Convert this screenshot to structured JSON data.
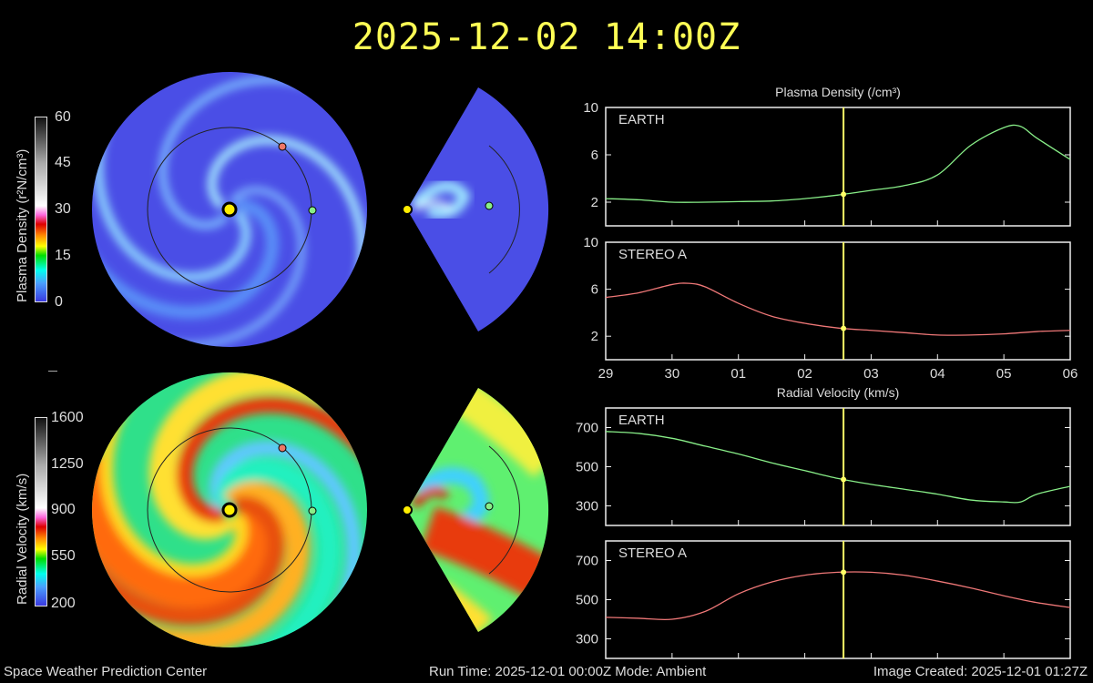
{
  "title": "2025-12-02 14:00Z",
  "footer": {
    "org": "Space Weather Prediction Center",
    "run_time": "Run Time: 2025-12-01 00:00Z  Mode: Ambient",
    "image_created": "Image Created: 2025-12-01 01:27Z"
  },
  "colorbars": {
    "density": {
      "title": "Plasma Density (r²N/cm³)",
      "ticks": [
        "60",
        "45",
        "30",
        "15",
        "0"
      ]
    },
    "velocity": {
      "title": "Radial Velocity (km/s)",
      "ticks": [
        "1600",
        "1250",
        "900",
        "550",
        "200"
      ]
    }
  },
  "colors": {
    "earth": "#88ee88",
    "stereo_a": "#ee7777",
    "current_time": "#ffff66",
    "sun": "#ffee00"
  },
  "chart_data": [
    {
      "type": "line",
      "title": "Plasma Density (/cm³)",
      "panel": "EARTH",
      "x_ticks": [
        "29",
        "30",
        "01",
        "02",
        "03",
        "04",
        "05",
        "06"
      ],
      "y_ticks": [
        "10",
        "6",
        "2"
      ],
      "ylim": [
        0,
        10
      ],
      "xlim": [
        "2025-11-29 00:00",
        "2025-12-06 00:00"
      ],
      "current_time": "2025-12-02 14:00",
      "series": [
        {
          "color": "#88ee88",
          "x": [
            "2025-11-29 00:00",
            "2025-11-29 12:00",
            "2025-11-30 00:00",
            "2025-11-30 12:00",
            "2025-12-01 00:00",
            "2025-12-01 12:00",
            "2025-12-02 00:00",
            "2025-12-02 12:00",
            "2025-12-03 00:00",
            "2025-12-03 12:00",
            "2025-12-04 00:00",
            "2025-12-04 12:00",
            "2025-12-05 00:00",
            "2025-12-05 06:00",
            "2025-12-05 12:00",
            "2025-12-06 00:00"
          ],
          "y": [
            2.3,
            2.2,
            2.0,
            2.0,
            2.05,
            2.1,
            2.3,
            2.6,
            3.0,
            3.4,
            4.3,
            6.8,
            8.3,
            8.4,
            7.4,
            5.6
          ]
        }
      ]
    },
    {
      "type": "line",
      "panel": "STEREO A",
      "x_ticks": [
        "29",
        "30",
        "01",
        "02",
        "03",
        "04",
        "05",
        "06"
      ],
      "y_ticks": [
        "10",
        "6",
        "2"
      ],
      "ylim": [
        0,
        10
      ],
      "xlim": [
        "2025-11-29 00:00",
        "2025-12-06 00:00"
      ],
      "current_time": "2025-12-02 14:00",
      "series": [
        {
          "color": "#ee7777",
          "x": [
            "2025-11-29 00:00",
            "2025-11-29 12:00",
            "2025-11-30 00:00",
            "2025-11-30 06:00",
            "2025-11-30 12:00",
            "2025-12-01 00:00",
            "2025-12-01 12:00",
            "2025-12-02 00:00",
            "2025-12-02 12:00",
            "2025-12-03 00:00",
            "2025-12-03 12:00",
            "2025-12-04 00:00",
            "2025-12-04 12:00",
            "2025-12-05 00:00",
            "2025-12-05 12:00",
            "2025-12-06 00:00"
          ],
          "y": [
            5.3,
            5.7,
            6.4,
            6.5,
            6.2,
            4.8,
            3.7,
            3.1,
            2.7,
            2.5,
            2.3,
            2.1,
            2.1,
            2.2,
            2.4,
            2.5
          ]
        }
      ]
    },
    {
      "type": "line",
      "title": "Radial Velocity (km/s)",
      "panel": "EARTH",
      "x_ticks": [
        "29",
        "30",
        "01",
        "02",
        "03",
        "04",
        "05",
        "06"
      ],
      "y_ticks": [
        "700",
        "500",
        "300"
      ],
      "ylim": [
        200,
        800
      ],
      "xlim": [
        "2025-11-29 00:00",
        "2025-12-06 00:00"
      ],
      "current_time": "2025-12-02 14:00",
      "series": [
        {
          "color": "#88ee88",
          "x": [
            "2025-11-29 00:00",
            "2025-11-29 12:00",
            "2025-11-30 00:00",
            "2025-11-30 12:00",
            "2025-12-01 00:00",
            "2025-12-01 12:00",
            "2025-12-02 00:00",
            "2025-12-02 12:00",
            "2025-12-03 00:00",
            "2025-12-03 12:00",
            "2025-12-04 00:00",
            "2025-12-04 12:00",
            "2025-12-05 00:00",
            "2025-12-05 06:00",
            "2025-12-05 12:00",
            "2025-12-06 00:00"
          ],
          "y": [
            680,
            670,
            645,
            605,
            565,
            520,
            480,
            440,
            410,
            385,
            360,
            330,
            320,
            320,
            360,
            400
          ]
        }
      ]
    },
    {
      "type": "line",
      "panel": "STEREO A",
      "x_ticks": [
        "29",
        "30",
        "01",
        "02",
        "03",
        "04",
        "05",
        "06"
      ],
      "y_ticks": [
        "700",
        "500",
        "300"
      ],
      "ylim": [
        200,
        800
      ],
      "xlim": [
        "2025-11-29 00:00",
        "2025-12-06 00:00"
      ],
      "current_time": "2025-12-02 14:00",
      "series": [
        {
          "color": "#ee7777",
          "x": [
            "2025-11-29 00:00",
            "2025-11-29 12:00",
            "2025-11-30 00:00",
            "2025-11-30 12:00",
            "2025-12-01 00:00",
            "2025-12-01 12:00",
            "2025-12-02 00:00",
            "2025-12-02 12:00",
            "2025-12-03 00:00",
            "2025-12-03 12:00",
            "2025-12-04 00:00",
            "2025-12-04 12:00",
            "2025-12-05 00:00",
            "2025-12-05 12:00",
            "2025-12-06 00:00"
          ],
          "y": [
            410,
            405,
            400,
            440,
            530,
            590,
            625,
            640,
            640,
            625,
            595,
            560,
            520,
            485,
            460
          ]
        }
      ]
    }
  ]
}
